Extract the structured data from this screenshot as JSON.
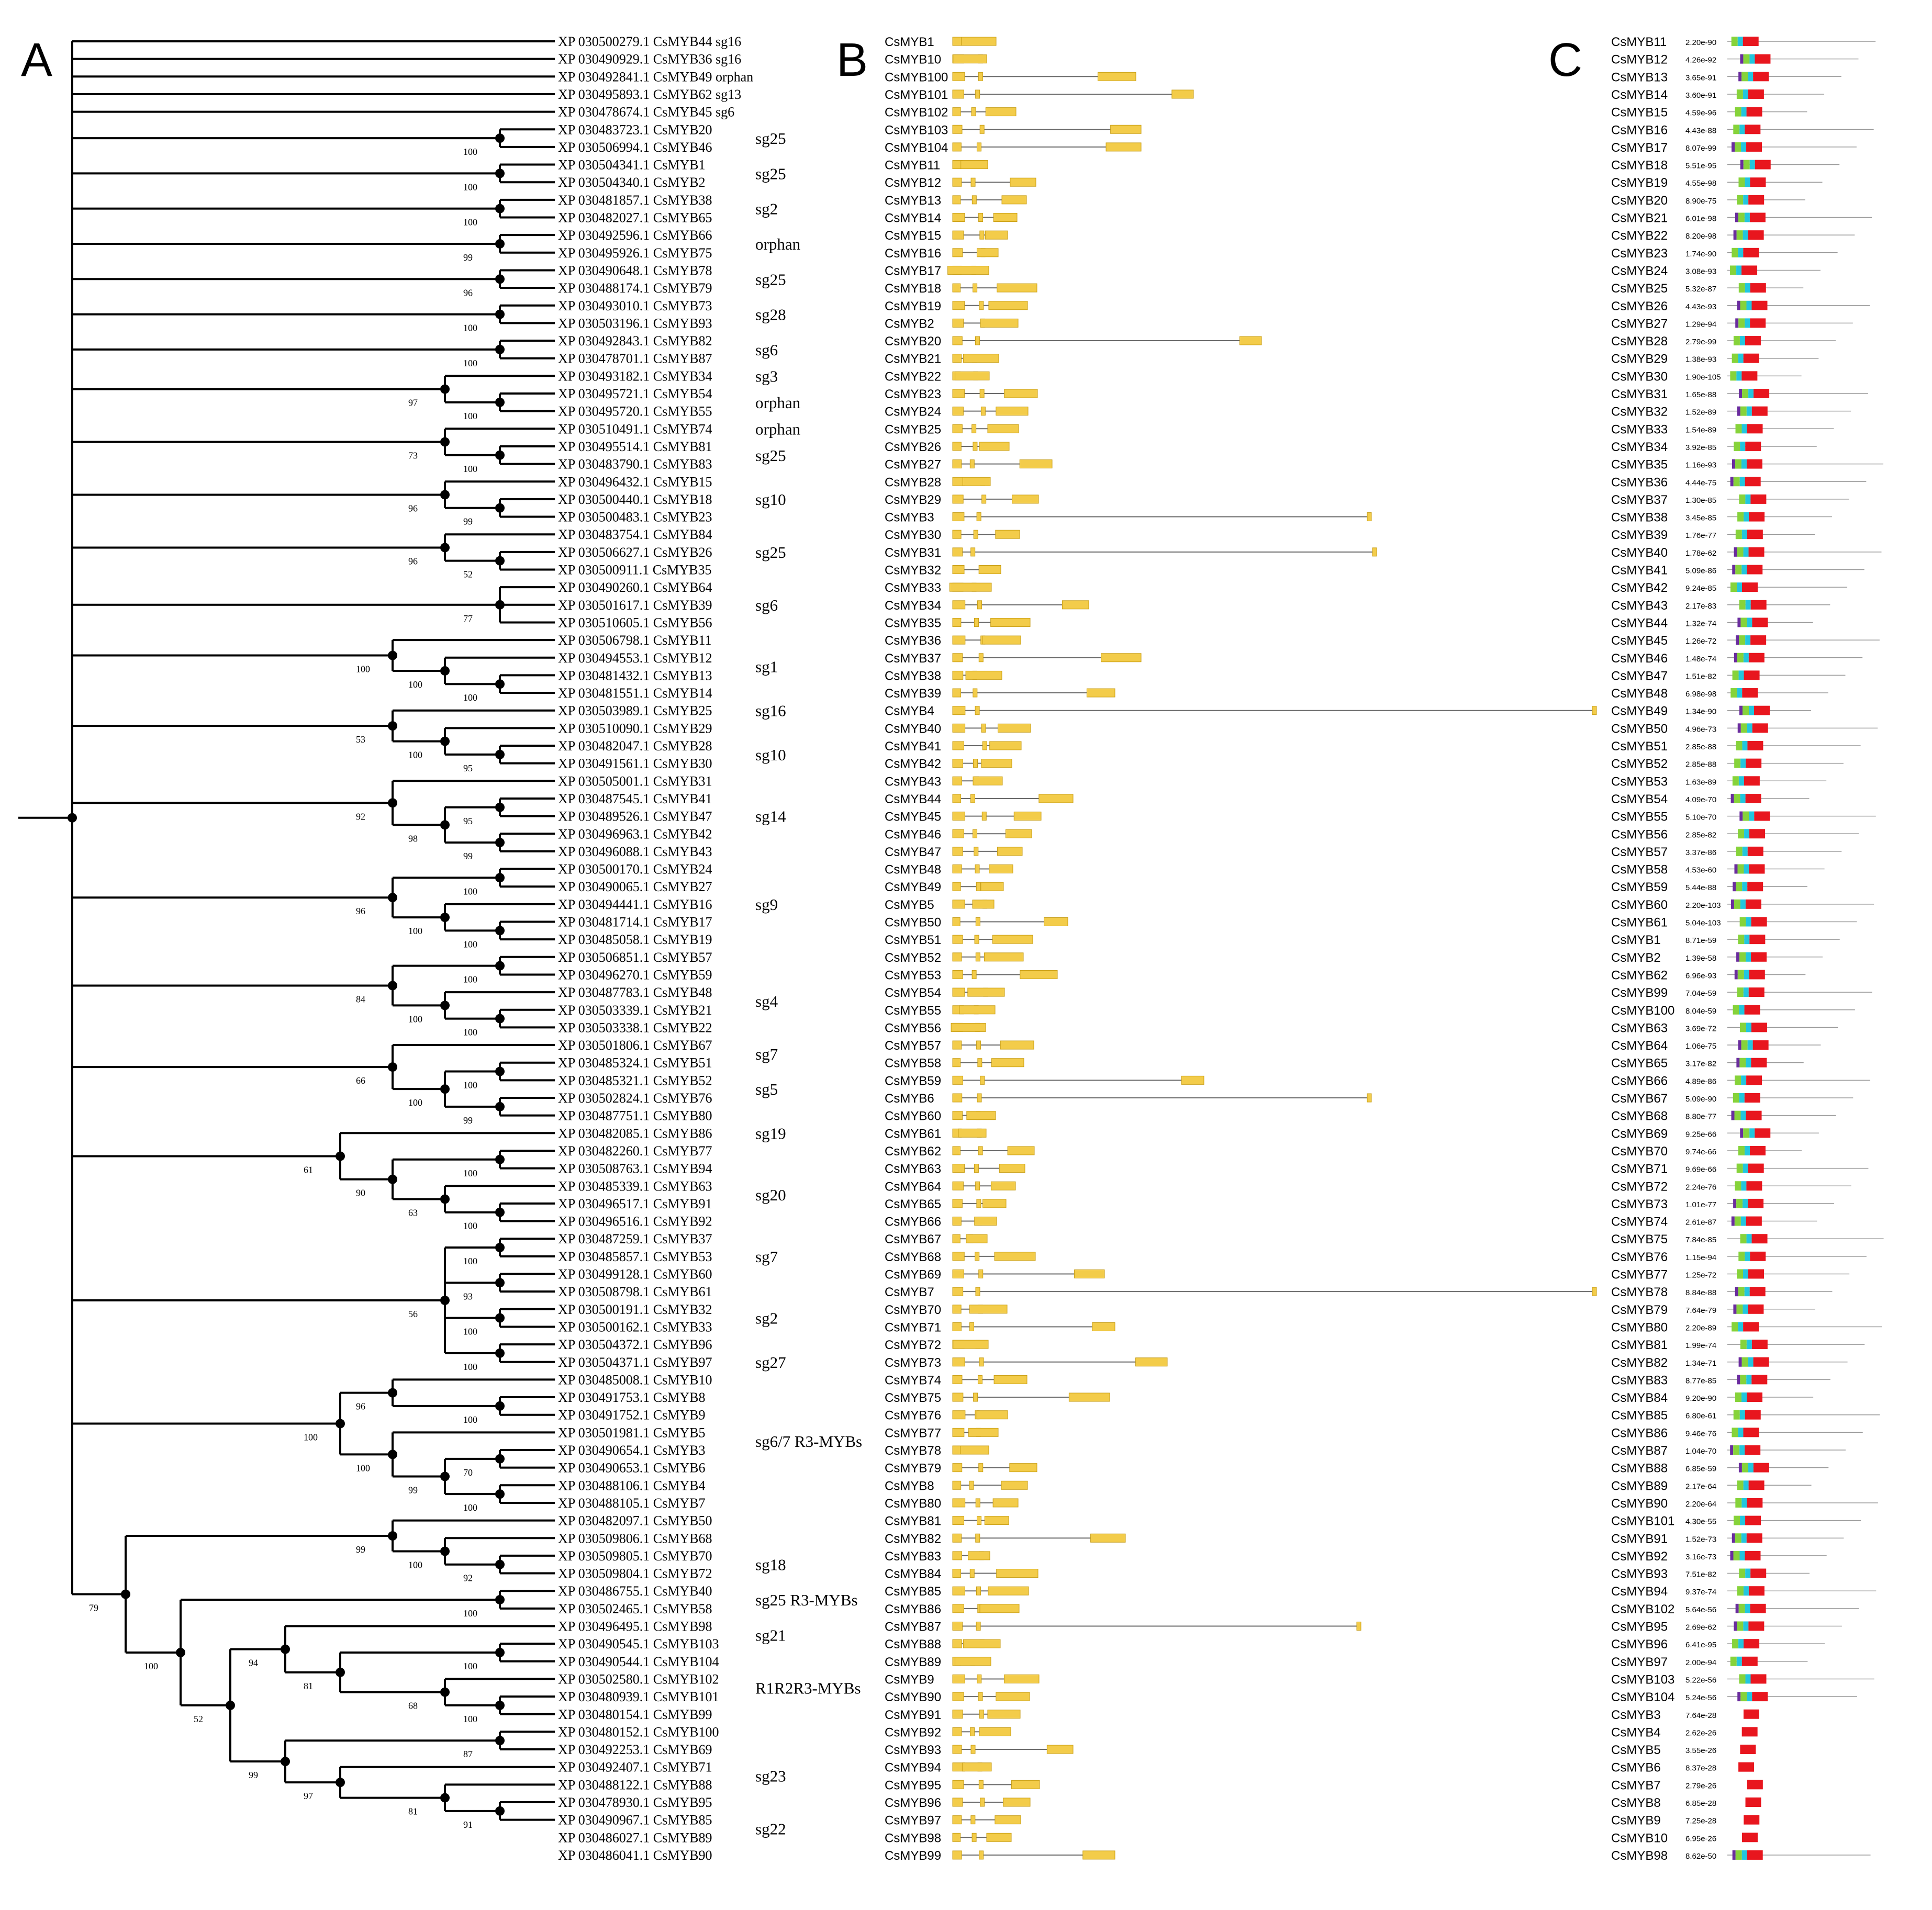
{
  "panels": {
    "a": "A",
    "b": "B",
    "c": "C"
  },
  "colors": {
    "exon": "#F3CC4A",
    "exon_edge": "#C89E16",
    "intron": "#6a6a6a",
    "motif_purple": "#6A2C9E",
    "motif_green": "#86D33A",
    "motif_cyan": "#22C6DE",
    "motif_red": "#E8161E",
    "protein_line": "#9a9a9a"
  },
  "tree": {
    "tips": [
      "XP 030500279.1 CsMYB44 sg16",
      "XP 030490929.1 CsMYB36 sg16",
      "XP 030492841.1 CsMYB49 orphan",
      "XP 030495893.1 CsMYB62 sg13",
      "XP 030478674.1 CsMYB45 sg6",
      "XP 030483723.1 CsMYB20",
      "XP 030506994.1 CsMYB46",
      "XP 030504341.1 CsMYB1",
      "XP 030504340.1 CsMYB2",
      "XP 030481857.1 CsMYB38",
      "XP 030482027.1 CsMYB65",
      "XP 030492596.1 CsMYB66",
      "XP 030495926.1 CsMYB75",
      "XP 030490648.1 CsMYB78",
      "XP 030488174.1 CsMYB79",
      "XP 030493010.1 CsMYB73",
      "XP 030503196.1 CsMYB93",
      "XP 030492843.1 CsMYB82",
      "XP 030478701.1 CsMYB87",
      "XP 030493182.1 CsMYB34",
      "XP 030495721.1 CsMYB54",
      "XP 030495720.1 CsMYB55",
      "XP 030510491.1 CsMYB74",
      "XP 030495514.1 CsMYB81",
      "XP 030483790.1 CsMYB83",
      "XP 030496432.1 CsMYB15",
      "XP 030500440.1 CsMYB18",
      "XP 030500483.1 CsMYB23",
      "XP 030483754.1 CsMYB84",
      "XP 030506627.1 CsMYB26",
      "XP 030500911.1 CsMYB35",
      "XP 030490260.1 CsMYB64",
      "XP 030501617.1 CsMYB39",
      "XP 030510605.1 CsMYB56",
      "XP 030506798.1 CsMYB11",
      "XP 030494553.1 CsMYB12",
      "XP 030481432.1 CsMYB13",
      "XP 030481551.1 CsMYB14",
      "XP 030503989.1 CsMYB25",
      "XP 030510090.1 CsMYB29",
      "XP 030482047.1 CsMYB28",
      "XP 030491561.1 CsMYB30",
      "XP 030505001.1 CsMYB31",
      "XP 030487545.1 CsMYB41",
      "XP 030489526.1 CsMYB47",
      "XP 030496963.1 CsMYB42",
      "XP 030496088.1 CsMYB43",
      "XP 030500170.1 CsMYB24",
      "XP 030490065.1 CsMYB27",
      "XP 030494441.1 CsMYB16",
      "XP 030481714.1 CsMYB17",
      "XP 030485058.1 CsMYB19",
      "XP 030506851.1 CsMYB57",
      "XP 030496270.1 CsMYB59",
      "XP 030487783.1 CsMYB48",
      "XP 030503339.1 CsMYB21",
      "XP 030503338.1 CsMYB22",
      "XP 030501806.1 CsMYB67",
      "XP 030485324.1 CsMYB51",
      "XP 030485321.1 CsMYB52",
      "XP 030502824.1 CsMYB76",
      "XP 030487751.1 CsMYB80",
      "XP 030482085.1 CsMYB86",
      "XP 030482260.1 CsMYB77",
      "XP 030508763.1 CsMYB94",
      "XP 030485339.1 CsMYB63",
      "XP 030496517.1 CsMYB91",
      "XP 030496516.1 CsMYB92",
      "XP 030487259.1 CsMYB37",
      "XP 030485857.1 CsMYB53",
      "XP 030499128.1 CsMYB60",
      "XP 030508798.1 CsMYB61",
      "XP 030500191.1 CsMYB32",
      "XP 030500162.1 CsMYB33",
      "XP 030504372.1 CsMYB96",
      "XP 030504371.1 CsMYB97",
      "XP 030485008.1 CsMYB10",
      "XP 030491753.1 CsMYB8",
      "XP 030491752.1 CsMYB9",
      "XP 030501981.1 CsMYB5",
      "XP 030490654.1 CsMYB3",
      "XP 030490653.1 CsMYB6",
      "XP 030488106.1 CsMYB4",
      "XP 030488105.1 CsMYB7",
      "XP 030482097.1 CsMYB50",
      "XP 030509806.1 CsMYB68",
      "XP 030509805.1 CsMYB70",
      "XP 030509804.1 CsMYB72",
      "XP 030486755.1 CsMYB40",
      "XP 030502465.1 CsMYB58",
      "XP 030496495.1 CsMYB98",
      "XP 030490545.1 CsMYB103",
      "XP 030490544.1 CsMYB104",
      "XP 030502580.1 CsMYB102",
      "XP 030480939.1 CsMYB101",
      "XP 030480154.1 CsMYB99",
      "XP 030480152.1 CsMYB100",
      "XP 030492253.1 CsMYB69",
      "XP 030492407.1 CsMYB71",
      "XP 030488122.1 CsMYB88",
      "XP 030478930.1 CsMYB95",
      "XP 030490967.1 CsMYB85",
      "XP 030486027.1 CsMYB89",
      "XP 030486041.1 CsMYB90"
    ],
    "groups": [
      {
        "label": "sg25",
        "row": 5.5
      },
      {
        "label": "sg25",
        "row": 7.5
      },
      {
        "label": "sg2",
        "row": 9.5
      },
      {
        "label": "orphan",
        "row": 11.5
      },
      {
        "label": "sg25",
        "row": 13.5
      },
      {
        "label": "sg28",
        "row": 15.5
      },
      {
        "label": "sg6",
        "row": 17.5
      },
      {
        "label": "sg3",
        "row": 19
      },
      {
        "label": "orphan",
        "row": 20.5
      },
      {
        "label": "orphan",
        "row": 22
      },
      {
        "label": "sg25",
        "row": 23.5
      },
      {
        "label": "sg10",
        "row": 26
      },
      {
        "label": "sg25",
        "row": 29
      },
      {
        "label": "sg6",
        "row": 32
      },
      {
        "label": "sg1",
        "row": 35.5
      },
      {
        "label": "sg16",
        "row": 38
      },
      {
        "label": "sg10",
        "row": 40.5
      },
      {
        "label": "sg14",
        "row": 44
      },
      {
        "label": "sg9",
        "row": 49
      },
      {
        "label": "sg4",
        "row": 54.5
      },
      {
        "label": "sg7",
        "row": 57.5
      },
      {
        "label": "sg5",
        "row": 59.5
      },
      {
        "label": "sg19",
        "row": 62
      },
      {
        "label": "sg20",
        "row": 65.5
      },
      {
        "label": "sg7",
        "row": 69
      },
      {
        "label": "sg2",
        "row": 72.5
      },
      {
        "label": "sg27",
        "row": 75
      },
      {
        "label": "sg6/7 R3-MYBs",
        "row": 79.5
      },
      {
        "label": "sg18",
        "row": 86.5
      },
      {
        "label": "sg25 R3-MYBs",
        "row": 88.5
      },
      {
        "label": "sg21",
        "row": 90.5
      },
      {
        "label": "R1R2R3-MYBs",
        "row": 93.5
      },
      {
        "label": "sg23",
        "row": 98.5
      },
      {
        "label": "sg22",
        "row": 101.5
      }
    ],
    "bootstraps": [
      "100",
      "100",
      "100",
      "99",
      "96",
      "100",
      "100",
      "97",
      "100",
      "73",
      "100",
      "96",
      "99",
      "96",
      "52",
      "77",
      "100",
      "100",
      "100",
      "53",
      "100",
      "95",
      "92",
      "95",
      "98",
      "99",
      "96",
      "100",
      "100",
      "100",
      "84",
      "100",
      "100",
      "100",
      "66",
      "100",
      "99",
      "100",
      "61",
      "100",
      "90",
      "63",
      "100",
      "56",
      "100",
      "93",
      "100",
      "100",
      "96",
      "100",
      "100",
      "99",
      "70",
      "100",
      "100",
      "99",
      "100",
      "92",
      "79",
      "100",
      "52",
      "94",
      "100",
      "100",
      "81",
      "68",
      "100",
      "87",
      "99",
      "100",
      "97",
      "81",
      "91",
      "100"
    ]
  },
  "gene_structure": {
    "genes": [
      "CsMYB1",
      "CsMYB10",
      "CsMYB100",
      "CsMYB101",
      "CsMYB102",
      "CsMYB103",
      "CsMYB104",
      "CsMYB11",
      "CsMYB12",
      "CsMYB13",
      "CsMYB14",
      "CsMYB15",
      "CsMYB16",
      "CsMYB17",
      "CsMYB18",
      "CsMYB19",
      "CsMYB2",
      "CsMYB20",
      "CsMYB21",
      "CsMYB22",
      "CsMYB23",
      "CsMYB24",
      "CsMYB25",
      "CsMYB26",
      "CsMYB27",
      "CsMYB28",
      "CsMYB29",
      "CsMYB3",
      "CsMYB30",
      "CsMYB31",
      "CsMYB32",
      "CsMYB33",
      "CsMYB34",
      "CsMYB35",
      "CsMYB36",
      "CsMYB37",
      "CsMYB38",
      "CsMYB39",
      "CsMYB4",
      "CsMYB40",
      "CsMYB41",
      "CsMYB42",
      "CsMYB43",
      "CsMYB44",
      "CsMYB45",
      "CsMYB46",
      "CsMYB47",
      "CsMYB48",
      "CsMYB49",
      "CsMYB5",
      "CsMYB50",
      "CsMYB51",
      "CsMYB52",
      "CsMYB53",
      "CsMYB54",
      "CsMYB55",
      "CsMYB56",
      "CsMYB57",
      "CsMYB58",
      "CsMYB59",
      "CsMYB6",
      "CsMYB60",
      "CsMYB61",
      "CsMYB62",
      "CsMYB63",
      "CsMYB64",
      "CsMYB65",
      "CsMYB66",
      "CsMYB67",
      "CsMYB68",
      "CsMYB69",
      "CsMYB7",
      "CsMYB70",
      "CsMYB71",
      "CsMYB72",
      "CsMYB73",
      "CsMYB74",
      "CsMYB75",
      "CsMYB76",
      "CsMYB77",
      "CsMYB78",
      "CsMYB79",
      "CsMYB8",
      "CsMYB80",
      "CsMYB81",
      "CsMYB82",
      "CsMYB83",
      "CsMYB84",
      "CsMYB85",
      "CsMYB86",
      "CsMYB87",
      "CsMYB88",
      "CsMYB89",
      "CsMYB9",
      "CsMYB90",
      "CsMYB91",
      "CsMYB92",
      "CsMYB93",
      "CsMYB94",
      "CsMYB95",
      "CsMYB96",
      "CsMYB97",
      "CsMYB98",
      "CsMYB99"
    ]
  },
  "motifs": {
    "proteins": [
      {
        "name": "CsMYB11",
        "evalue": "2.20e-90"
      },
      {
        "name": "CsMYB12",
        "evalue": "4.26e-92"
      },
      {
        "name": "CsMYB13",
        "evalue": "3.65e-91"
      },
      {
        "name": "CsMYB14",
        "evalue": "3.60e-91"
      },
      {
        "name": "CsMYB15",
        "evalue": "4.59e-96"
      },
      {
        "name": "CsMYB16",
        "evalue": "4.43e-88"
      },
      {
        "name": "CsMYB17",
        "evalue": "8.07e-99"
      },
      {
        "name": "CsMYB18",
        "evalue": "5.51e-95"
      },
      {
        "name": "CsMYB19",
        "evalue": "4.55e-98"
      },
      {
        "name": "CsMYB20",
        "evalue": "8.90e-75"
      },
      {
        "name": "CsMYB21",
        "evalue": "6.01e-98"
      },
      {
        "name": "CsMYB22",
        "evalue": "8.20e-98"
      },
      {
        "name": "CsMYB23",
        "evalue": "1.74e-90"
      },
      {
        "name": "CsMYB24",
        "evalue": "3.08e-93"
      },
      {
        "name": "CsMYB25",
        "evalue": "5.32e-87"
      },
      {
        "name": "CsMYB26",
        "evalue": "4.43e-93"
      },
      {
        "name": "CsMYB27",
        "evalue": "1.29e-94"
      },
      {
        "name": "CsMYB28",
        "evalue": "2.79e-99"
      },
      {
        "name": "CsMYB29",
        "evalue": "1.38e-93"
      },
      {
        "name": "CsMYB30",
        "evalue": "1.90e-105"
      },
      {
        "name": "CsMYB31",
        "evalue": "1.65e-88"
      },
      {
        "name": "CsMYB32",
        "evalue": "1.52e-89"
      },
      {
        "name": "CsMYB33",
        "evalue": "1.54e-89"
      },
      {
        "name": "CsMYB34",
        "evalue": "3.92e-85"
      },
      {
        "name": "CsMYB35",
        "evalue": "1.16e-93"
      },
      {
        "name": "CsMYB36",
        "evalue": "4.44e-75"
      },
      {
        "name": "CsMYB37",
        "evalue": "1.30e-85"
      },
      {
        "name": "CsMYB38",
        "evalue": "3.45e-85"
      },
      {
        "name": "CsMYB39",
        "evalue": "1.76e-77"
      },
      {
        "name": "CsMYB40",
        "evalue": "1.78e-62"
      },
      {
        "name": "CsMYB41",
        "evalue": "5.09e-86"
      },
      {
        "name": "CsMYB42",
        "evalue": "9.24e-85"
      },
      {
        "name": "CsMYB43",
        "evalue": "2.17e-83"
      },
      {
        "name": "CsMYB44",
        "evalue": "1.32e-74"
      },
      {
        "name": "CsMYB45",
        "evalue": "1.26e-72"
      },
      {
        "name": "CsMYB46",
        "evalue": "1.48e-74"
      },
      {
        "name": "CsMYB47",
        "evalue": "1.51e-82"
      },
      {
        "name": "CsMYB48",
        "evalue": "6.98e-98"
      },
      {
        "name": "CsMYB49",
        "evalue": "1.34e-90"
      },
      {
        "name": "CsMYB50",
        "evalue": "4.96e-73"
      },
      {
        "name": "CsMYB51",
        "evalue": "2.85e-88"
      },
      {
        "name": "CsMYB52",
        "evalue": "2.85e-88"
      },
      {
        "name": "CsMYB53",
        "evalue": "1.63e-89"
      },
      {
        "name": "CsMYB54",
        "evalue": "4.09e-70"
      },
      {
        "name": "CsMYB55",
        "evalue": "5.10e-70"
      },
      {
        "name": "CsMYB56",
        "evalue": "2.85e-82"
      },
      {
        "name": "CsMYB57",
        "evalue": "3.37e-86"
      },
      {
        "name": "CsMYB58",
        "evalue": "4.53e-60"
      },
      {
        "name": "CsMYB59",
        "evalue": "5.44e-88"
      },
      {
        "name": "CsMYB60",
        "evalue": "2.20e-103"
      },
      {
        "name": "CsMYB61",
        "evalue": "5.04e-103"
      },
      {
        "name": "CsMYB1",
        "evalue": "8.71e-59"
      },
      {
        "name": "CsMYB2",
        "evalue": "1.39e-58"
      },
      {
        "name": "CsMYB62",
        "evalue": "6.96e-93"
      },
      {
        "name": "CsMYB99",
        "evalue": "7.04e-59"
      },
      {
        "name": "CsMYB100",
        "evalue": "8.04e-59"
      },
      {
        "name": "CsMYB63",
        "evalue": "3.69e-72"
      },
      {
        "name": "CsMYB64",
        "evalue": "1.06e-75"
      },
      {
        "name": "CsMYB65",
        "evalue": "3.17e-82"
      },
      {
        "name": "CsMYB66",
        "evalue": "4.89e-86"
      },
      {
        "name": "CsMYB67",
        "evalue": "5.09e-90"
      },
      {
        "name": "CsMYB68",
        "evalue": "8.80e-77"
      },
      {
        "name": "CsMYB69",
        "evalue": "9.25e-66"
      },
      {
        "name": "CsMYB70",
        "evalue": "9.74e-66"
      },
      {
        "name": "CsMYB71",
        "evalue": "9.69e-66"
      },
      {
        "name": "CsMYB72",
        "evalue": "2.24e-76"
      },
      {
        "name": "CsMYB73",
        "evalue": "1.01e-77"
      },
      {
        "name": "CsMYB74",
        "evalue": "2.61e-87"
      },
      {
        "name": "CsMYB75",
        "evalue": "7.84e-85"
      },
      {
        "name": "CsMYB76",
        "evalue": "1.15e-94"
      },
      {
        "name": "CsMYB77",
        "evalue": "1.25e-72"
      },
      {
        "name": "CsMYB78",
        "evalue": "8.84e-88"
      },
      {
        "name": "CsMYB79",
        "evalue": "7.64e-79"
      },
      {
        "name": "CsMYB80",
        "evalue": "2.20e-89"
      },
      {
        "name": "CsMYB81",
        "evalue": "1.99e-74"
      },
      {
        "name": "CsMYB82",
        "evalue": "1.34e-71"
      },
      {
        "name": "CsMYB83",
        "evalue": "8.77e-85"
      },
      {
        "name": "CsMYB84",
        "evalue": "9.20e-90"
      },
      {
        "name": "CsMYB85",
        "evalue": "6.80e-61"
      },
      {
        "name": "CsMYB86",
        "evalue": "9.46e-76"
      },
      {
        "name": "CsMYB87",
        "evalue": "1.04e-70"
      },
      {
        "name": "CsMYB88",
        "evalue": "6.85e-59"
      },
      {
        "name": "CsMYB89",
        "evalue": "2.17e-64"
      },
      {
        "name": "CsMYB90",
        "evalue": "2.20e-64"
      },
      {
        "name": "CsMYB101",
        "evalue": "4.30e-55"
      },
      {
        "name": "CsMYB91",
        "evalue": "1.52e-73"
      },
      {
        "name": "CsMYB92",
        "evalue": "3.16e-73"
      },
      {
        "name": "CsMYB93",
        "evalue": "7.51e-82"
      },
      {
        "name": "CsMYB94",
        "evalue": "9.37e-74"
      },
      {
        "name": "CsMYB102",
        "evalue": "5.64e-56"
      },
      {
        "name": "CsMYB95",
        "evalue": "2.69e-62"
      },
      {
        "name": "CsMYB96",
        "evalue": "6.41e-95"
      },
      {
        "name": "CsMYB97",
        "evalue": "2.00e-94"
      },
      {
        "name": "CsMYB103",
        "evalue": "5.22e-56"
      },
      {
        "name": "CsMYB104",
        "evalue": "5.24e-56"
      },
      {
        "name": "CsMYB3",
        "evalue": "7.64e-28"
      },
      {
        "name": "CsMYB4",
        "evalue": "2.62e-26"
      },
      {
        "name": "CsMYB5",
        "evalue": "3.55e-26"
      },
      {
        "name": "CsMYB6",
        "evalue": "8.37e-28"
      },
      {
        "name": "CsMYB7",
        "evalue": "2.79e-26"
      },
      {
        "name": "CsMYB8",
        "evalue": "6.85e-28"
      },
      {
        "name": "CsMYB9",
        "evalue": "7.25e-28"
      },
      {
        "name": "CsMYB10",
        "evalue": "6.95e-26"
      },
      {
        "name": "CsMYB98",
        "evalue": "8.62e-50"
      }
    ]
  }
}
